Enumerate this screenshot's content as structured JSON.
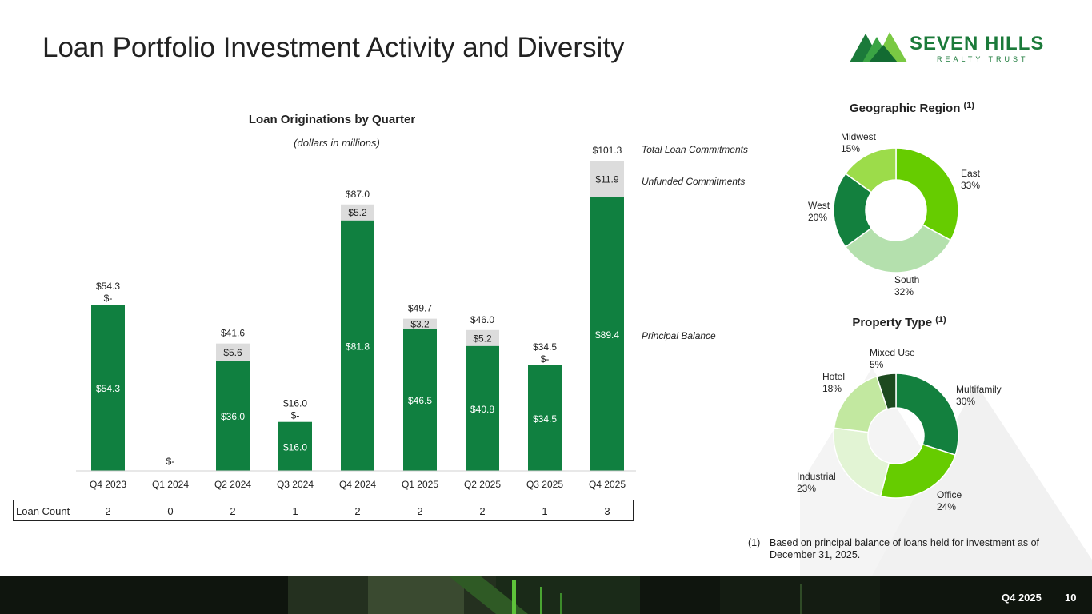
{
  "page": {
    "title": "Loan Portfolio Investment Activity and Diversity",
    "footer_period": "Q4 2025",
    "page_number": "10"
  },
  "logo": {
    "name": "SEVEN HILLS",
    "tagline": "REALTY TRUST"
  },
  "colors": {
    "dark_green": "#108040",
    "light_gray": "#dcdcdc",
    "lime": "#66cc00",
    "pale_green": "#b4e0ad",
    "forest": "#13803e",
    "light_lime": "#9cdc4a",
    "very_pale": "#e2f4d4",
    "soft_green": "#c2e8a0",
    "darkest": "#1d4a1f"
  },
  "chart_data": [
    {
      "type": "bar",
      "stacked": true,
      "title": "Loan Originations by Quarter",
      "subtitle": "(dollars in millions)",
      "categories": [
        "Q4 2023",
        "Q1 2024",
        "Q2 2024",
        "Q3 2024",
        "Q4 2024",
        "Q1 2025",
        "Q2 2025",
        "Q3 2025",
        "Q4 2025"
      ],
      "series": [
        {
          "name": "Principal Balance",
          "values": [
            54.3,
            0,
            36.0,
            16.0,
            81.8,
            46.5,
            40.8,
            34.5,
            89.4
          ],
          "labels": [
            "$54.3",
            "$-",
            "$36.0",
            "$16.0",
            "$81.8",
            "$46.5",
            "$40.8",
            "$34.5",
            "$89.4"
          ]
        },
        {
          "name": "Unfunded Commitments",
          "values": [
            0,
            0,
            5.6,
            0,
            5.2,
            3.2,
            5.2,
            0,
            11.9
          ],
          "labels": [
            "$-",
            "",
            "$5.6",
            "$-",
            "$5.2",
            "$3.2",
            "$5.2",
            "$-",
            "$11.9"
          ]
        }
      ],
      "totals": [
        "$54.3",
        "",
        "$41.6",
        "$16.0",
        "$87.0",
        "$49.7",
        "$46.0",
        "$34.5",
        "$101.3"
      ],
      "legend": {
        "total": "Total Loan Commitments",
        "unfunded": "Unfunded Commitments",
        "principal": "Principal Balance"
      },
      "ylim": [
        0,
        101.3
      ],
      "loan_count": {
        "label": "Loan Count",
        "values": [
          "2",
          "0",
          "2",
          "1",
          "2",
          "2",
          "2",
          "1",
          "3"
        ]
      }
    },
    {
      "type": "pie",
      "donut": true,
      "title": "Geographic Region",
      "title_note": "(1)",
      "slices": [
        {
          "label": "East",
          "pct": "33%",
          "value": 33,
          "color": "#66cc00"
        },
        {
          "label": "South",
          "pct": "32%",
          "value": 32,
          "color": "#b4e0ad"
        },
        {
          "label": "West",
          "pct": "20%",
          "value": 20,
          "color": "#13803e"
        },
        {
          "label": "Midwest",
          "pct": "15%",
          "value": 15,
          "color": "#9cdc4a"
        }
      ]
    },
    {
      "type": "pie",
      "donut": true,
      "title": "Property Type",
      "title_note": "(1)",
      "slices": [
        {
          "label": "Multifamily",
          "pct": "30%",
          "value": 30,
          "color": "#13803e"
        },
        {
          "label": "Office",
          "pct": "24%",
          "value": 24,
          "color": "#66cc00"
        },
        {
          "label": "Industrial",
          "pct": "23%",
          "value": 23,
          "color": "#e2f4d4"
        },
        {
          "label": "Hotel",
          "pct": "18%",
          "value": 18,
          "color": "#c2e8a0"
        },
        {
          "label": "Mixed Use",
          "pct": "5%",
          "value": 5,
          "color": "#1d4a1f"
        }
      ]
    }
  ],
  "footnote": {
    "number": "(1)",
    "text": "Based on principal balance of loans held for investment as of December 31, 2025."
  }
}
